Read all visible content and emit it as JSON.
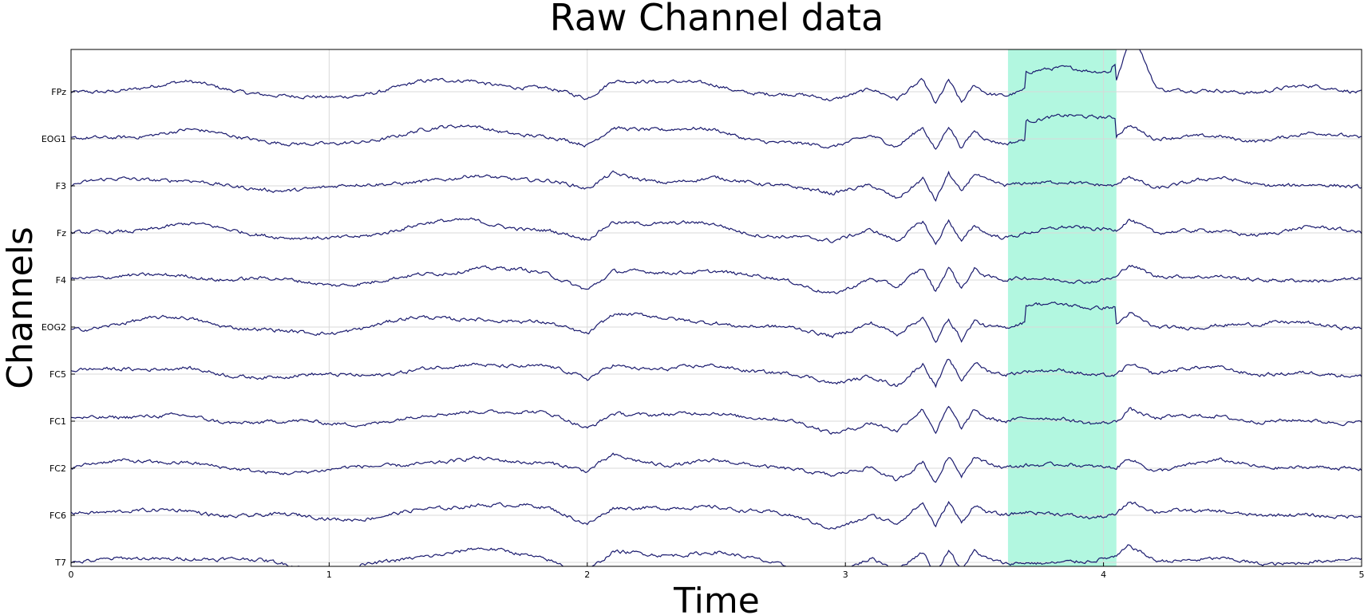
{
  "chart_data": {
    "type": "line",
    "title": "Raw Channel data",
    "xlabel": "Time",
    "ylabel": "Channels",
    "xlim": [
      0,
      5
    ],
    "x_ticks": [
      0,
      1,
      2,
      3,
      4,
      5
    ],
    "grid": true,
    "channels": [
      "FPz",
      "EOG1",
      "F3",
      "Fz",
      "F4",
      "EOG2",
      "FC5",
      "FC1",
      "FC2",
      "FC6",
      "T7"
    ],
    "highlight_region": {
      "x_start": 3.63,
      "x_end": 4.05,
      "color": "#b2f7e0"
    },
    "trace_color": "#1a1a6e",
    "series_keypoints": {
      "x": [
        0,
        0.2,
        0.45,
        0.6,
        0.85,
        1.0,
        1.15,
        1.35,
        1.5,
        1.55,
        1.7,
        1.85,
        2.0,
        2.1,
        2.3,
        2.5,
        2.6,
        2.8,
        2.95,
        3.1,
        3.2,
        3.3,
        3.35,
        3.4,
        3.45,
        3.5,
        3.55,
        3.62,
        3.7,
        3.85,
        3.95,
        4.05,
        4.1,
        4.2,
        4.45,
        4.6,
        4.8,
        5.0
      ],
      "common": [
        0,
        0.4,
        0.6,
        0.1,
        -0.3,
        -0.4,
        -0.1,
        0.6,
        0.8,
        1.0,
        0.7,
        0.4,
        -0.6,
        1.0,
        0.6,
        0.7,
        0.3,
        -0.2,
        -0.9,
        0.2,
        -0.8,
        0.9,
        -1.2,
        1.1,
        -0.8,
        0.9,
        0.2,
        -0.1,
        0.2,
        0.3,
        0.1,
        0.2,
        1.2,
        0.0,
        0.4,
        0.0,
        0.2,
        0.0
      ]
    }
  }
}
